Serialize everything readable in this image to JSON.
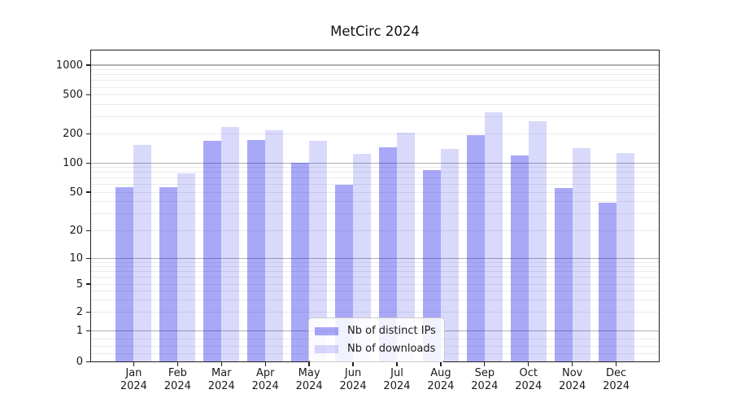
{
  "chart_data": {
    "type": "bar",
    "title": "MetCirc 2024",
    "yscale": "symlog (logarithmic above 1, linear 0–1)",
    "grid": "horizontal major+minor",
    "legend_position": "lower center",
    "categories": [
      "Jan",
      "Feb",
      "Mar",
      "Apr",
      "May",
      "Jun",
      "Jul",
      "Aug",
      "Sep",
      "Oct",
      "Nov",
      "Dec"
    ],
    "category_year": "2024",
    "series": [
      {
        "name": "Nb of distinct IPs",
        "color": "rgba(0,0,232,0.34)",
        "values": [
          56,
          56,
          170,
          174,
          100,
          59,
          145,
          84,
          196,
          120,
          55,
          39
        ]
      },
      {
        "name": "Nb of downloads",
        "color": "rgba(0,0,232,0.15)",
        "values": [
          154,
          78,
          235,
          220,
          170,
          124,
          207,
          140,
          335,
          270,
          143,
          128
        ]
      }
    ],
    "ytick_labels": [
      "1000",
      "500",
      "200",
      "100",
      "50",
      "20",
      "10",
      "5",
      "2",
      "1",
      "0"
    ],
    "ytick_values": [
      1000,
      500,
      200,
      100,
      50,
      20,
      10,
      5,
      2,
      1,
      0
    ],
    "ylim": [
      0,
      1500
    ],
    "colors": {
      "bar_dark": "#a8a8f8",
      "bar_light": "#d8d8fb",
      "grid_major": "#b0b0b0",
      "grid_minor": "#ebebeb",
      "spine": "#1f1f1f",
      "text": "#1a1a1a"
    }
  }
}
